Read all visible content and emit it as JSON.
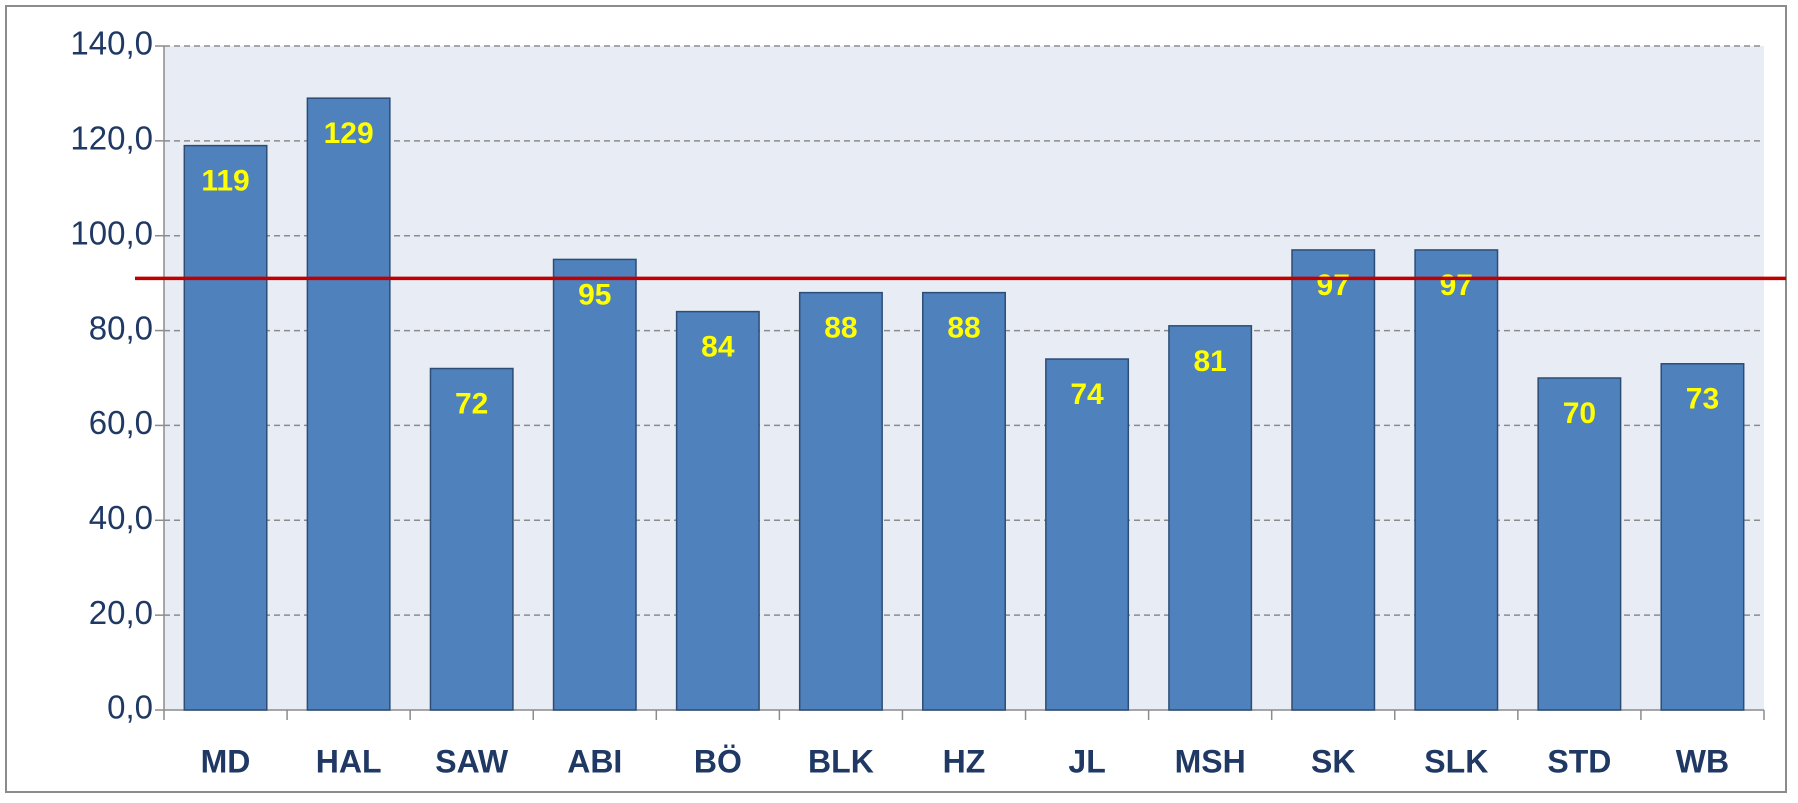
{
  "chart_data": {
    "type": "bar",
    "categories": [
      "MD",
      "HAL",
      "SAW",
      "ABI",
      "BÖ",
      "BLK",
      "HZ",
      "JL",
      "MSH",
      "SK",
      "SLK",
      "STD",
      "WB"
    ],
    "values": [
      119,
      129,
      72,
      95,
      84,
      88,
      88,
      74,
      81,
      97,
      97,
      70,
      73
    ],
    "color": "#4f81bd",
    "reference_line": 91,
    "reference_color": "#c00000",
    "ylim": [
      0,
      140
    ],
    "yticks": [
      {
        "value": 0,
        "label": "0,0"
      },
      {
        "value": 20,
        "label": "20,0"
      },
      {
        "value": 40,
        "label": "40,0"
      },
      {
        "value": 60,
        "label": "60,0"
      },
      {
        "value": 80,
        "label": "80,0"
      },
      {
        "value": 100,
        "label": "100,0"
      },
      {
        "value": 120,
        "label": "120,0"
      },
      {
        "value": 140,
        "label": "140,0"
      }
    ],
    "grid": true
  }
}
